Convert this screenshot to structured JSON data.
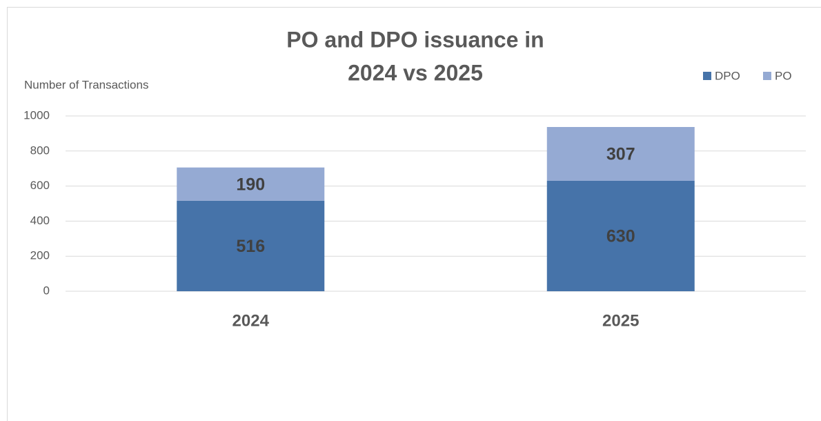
{
  "chart_data": {
    "type": "stacked_bar",
    "title": [
      "PO and DPO issuance in",
      "2024 vs 2025"
    ],
    "y_label": "Number of Transactions",
    "categories": [
      "2024",
      "2025"
    ],
    "series": [
      {
        "name": "DPO",
        "color": "#4673a9",
        "values": [
          516,
          630
        ]
      },
      {
        "name": "PO",
        "color": "#95aad3",
        "values": [
          190,
          307
        ]
      }
    ],
    "ylim": [
      0,
      1000
    ],
    "yticks": [
      0,
      200,
      400,
      600,
      800,
      1000
    ],
    "grid": true,
    "legend": "top-right"
  }
}
